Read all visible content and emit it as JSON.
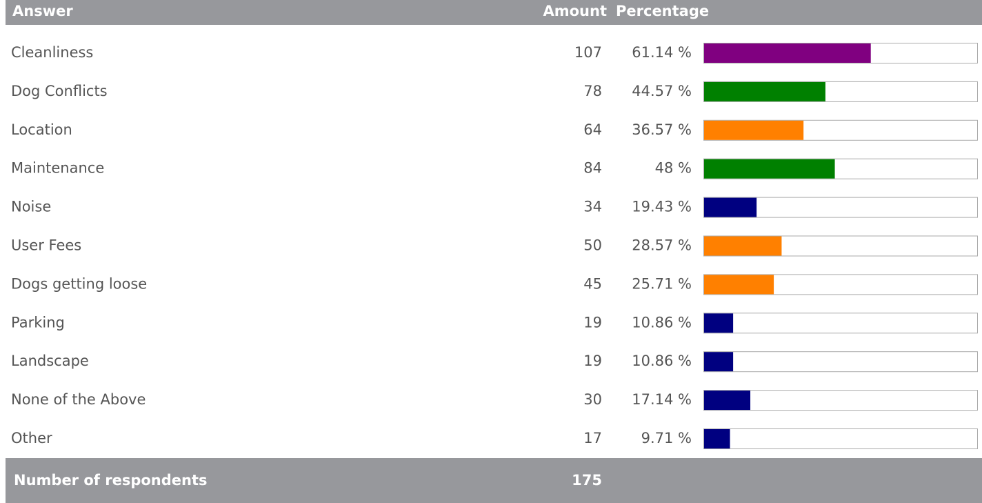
{
  "chart_data": {
    "type": "bar",
    "headers": [
      "Answer",
      "Amount",
      "Percentage"
    ],
    "categories": [
      "Cleanliness",
      "Dog Conflicts",
      "Location",
      "Maintenance",
      "Noise",
      "User Fees",
      "Dogs getting loose",
      "Parking",
      "Landscape",
      "None of the Above",
      "Other"
    ],
    "amounts": [
      107,
      78,
      64,
      84,
      34,
      50,
      45,
      19,
      19,
      30,
      17
    ],
    "values": [
      61.14,
      44.57,
      36.57,
      48,
      19.43,
      28.57,
      25.71,
      10.86,
      10.86,
      17.14,
      9.71
    ],
    "value_labels": [
      "61.14 %",
      "44.57 %",
      "36.57 %",
      "48 %",
      "19.43 %",
      "28.57 %",
      "25.71 %",
      "10.86 %",
      "10.86 %",
      "17.14 %",
      "9.71 %"
    ],
    "colors": [
      "#800080",
      "#008000",
      "#ff8000",
      "#008000",
      "#000080",
      "#ff8000",
      "#ff8000",
      "#000080",
      "#000080",
      "#000080",
      "#000080"
    ],
    "xlim": [
      0,
      100
    ],
    "footer": {
      "label": "Number of respondents",
      "value": 175
    }
  }
}
